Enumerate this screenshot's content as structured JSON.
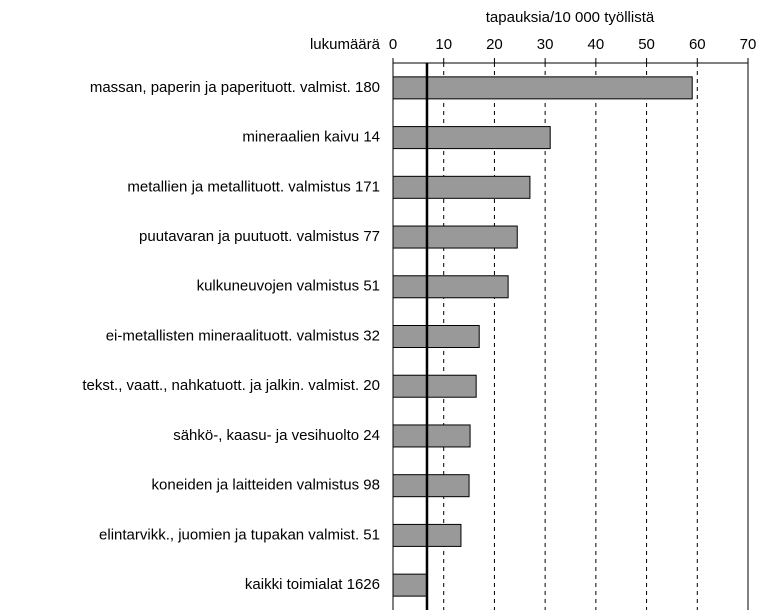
{
  "chart_data": {
    "type": "hbar",
    "x_label": "tapauksia/10 000 työllistä",
    "category_label": "lukumäärä",
    "categories": [
      "massan, paperin ja paperituott. valmist. 180",
      "mineraalien kaivu 14",
      "metallien ja metallituott. valmistus 171",
      "puutavaran ja puutuott. valmistus 77",
      "kulkuneuvojen valmistus 51",
      "ei-metallisten mineraalituott. valmistus 32",
      "tekst., vaatt., nahkatuott. ja jalkin. valmist. 20",
      "sähkö-, kaasu- ja vesihuolto 24",
      "koneiden ja laitteiden valmistus 98",
      "elintarvikk., juomien ja tupakan valmist. 51",
      "kaikki toimialat 1626"
    ],
    "values": [
      59.0,
      31.0,
      27.0,
      24.5,
      22.7,
      17.0,
      16.4,
      15.2,
      15.0,
      13.4,
      6.7
    ],
    "color": "#999999",
    "xlim": [
      0,
      70
    ],
    "xticks": [
      0,
      10,
      20,
      30,
      40,
      50,
      60,
      70
    ],
    "grid": true
  }
}
